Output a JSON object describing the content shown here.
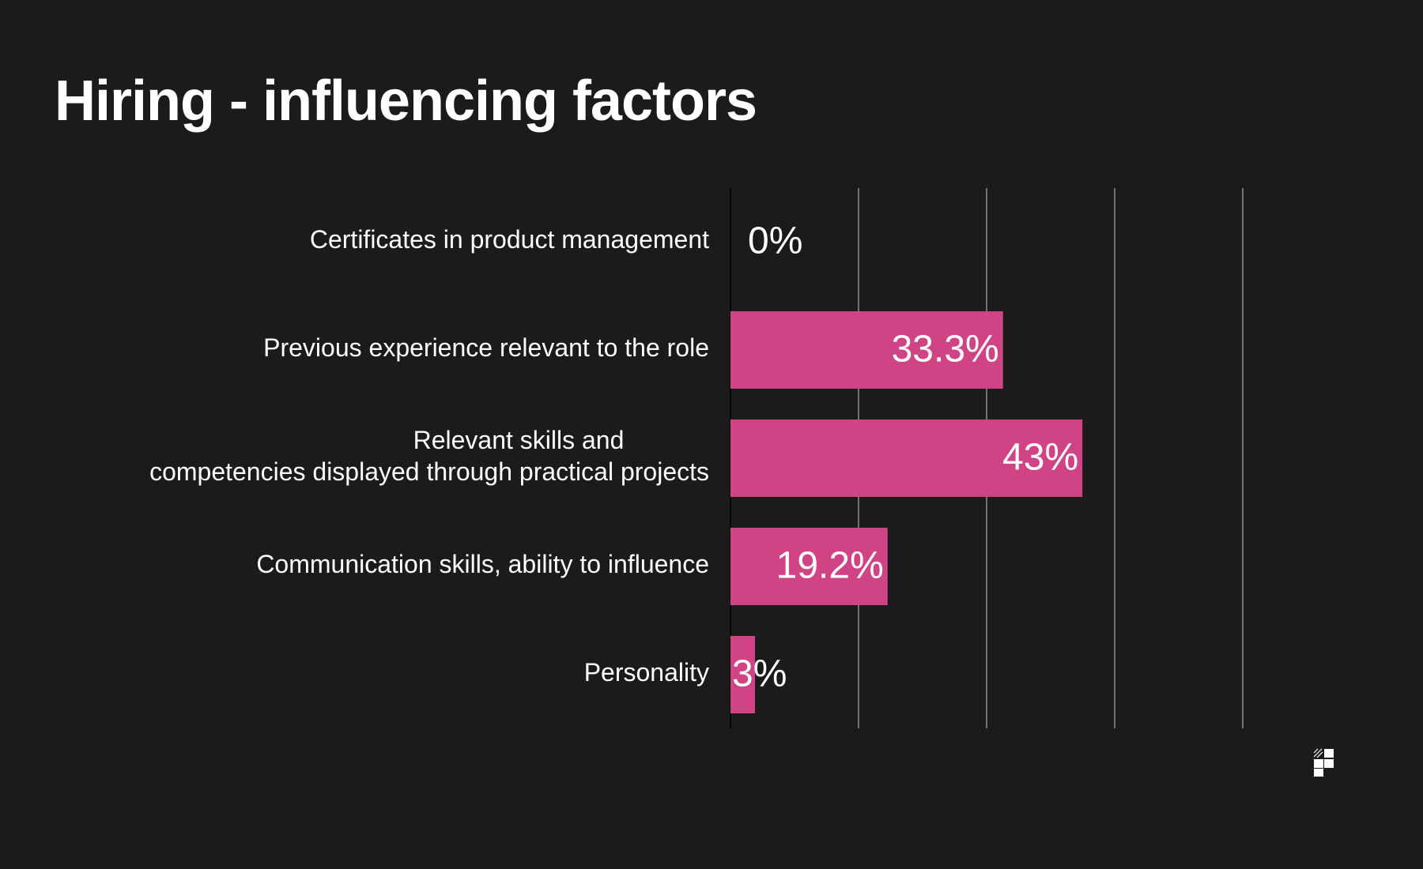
{
  "chart_data": {
    "type": "bar",
    "orientation": "horizontal",
    "title": "Hiring - influencing factors",
    "categories": [
      "Certificates in product management",
      "Previous experience relevant to the role",
      "Relevant skills and\ncompetencies displayed through practical projects",
      "Communication skills, ability to influence",
      "Personality"
    ],
    "values": [
      0,
      33.3,
      43,
      19.2,
      3
    ],
    "value_labels": [
      "0%",
      "33.3%",
      "43%",
      "19.2%",
      "3%"
    ],
    "xlim": [
      0,
      62.5
    ],
    "vertical_gridlines": true,
    "xlabel": "",
    "ylabel": ""
  },
  "colors": {
    "background": "#1b1b1b",
    "bar": "#d04485",
    "text": "#ffffff",
    "grid": "#c9c9c9"
  },
  "logo": {
    "icon": "brand-logo-icon"
  }
}
